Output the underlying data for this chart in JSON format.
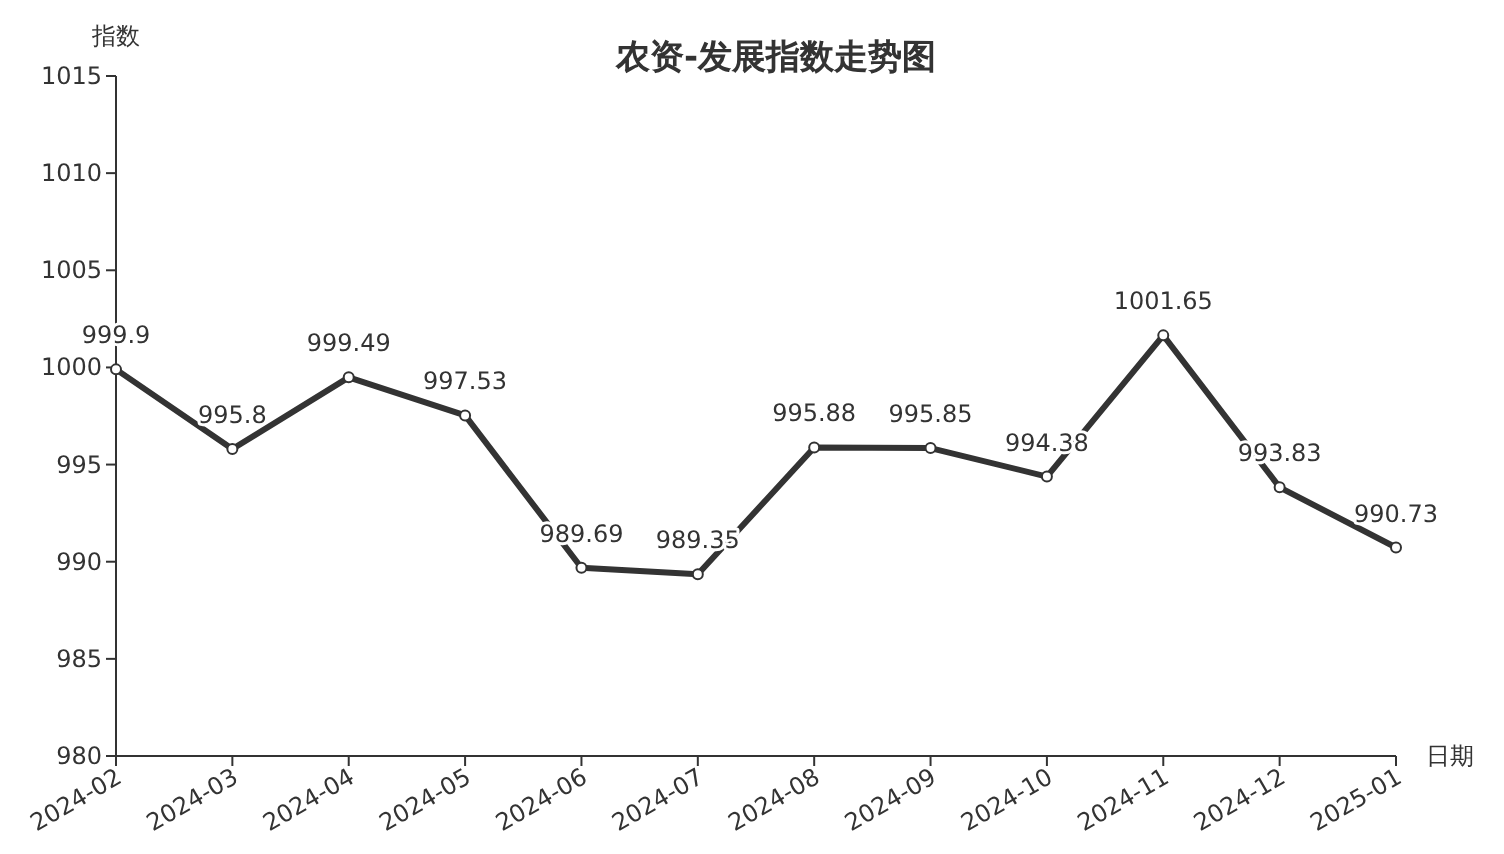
{
  "chart_data": {
    "type": "line",
    "title": "农资-发展指数走势图",
    "xlabel": "日期",
    "ylabel": "指数",
    "categories": [
      "2024-02",
      "2024-03",
      "2024-04",
      "2024-05",
      "2024-06",
      "2024-07",
      "2024-08",
      "2024-09",
      "2024-10",
      "2024-11",
      "2024-12",
      "2025-01"
    ],
    "series": [
      {
        "color": "#333333",
        "values": [
          999.9,
          995.8,
          999.49,
          997.53,
          989.69,
          989.35,
          995.88,
          995.85,
          994.38,
          1001.65,
          993.83,
          990.73
        ]
      }
    ],
    "ylim": [
      980,
      1015
    ],
    "yticks": [
      980,
      985,
      990,
      995,
      1000,
      1005,
      1010,
      1015
    ],
    "grid": false,
    "marker": "circle",
    "line_style": "solid",
    "data_labels": true
  }
}
